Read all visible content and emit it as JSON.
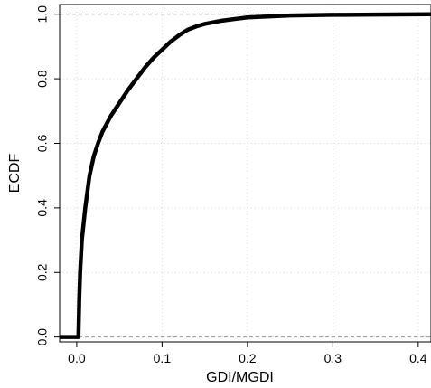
{
  "chart_data": {
    "type": "line",
    "title": "",
    "xlabel": "GDI/MGDI",
    "ylabel": "ECDF",
    "xlim": [
      -0.02,
      0.415
    ],
    "ylim": [
      -0.015,
      1.03
    ],
    "x_ticks": [
      0.0,
      0.1,
      0.2,
      0.3,
      0.4
    ],
    "y_ticks": [
      0.0,
      0.2,
      0.4,
      0.6,
      0.8,
      1.0
    ],
    "x_tick_labels": [
      "0.0",
      "0.1",
      "0.2",
      "0.3",
      "0.4"
    ],
    "y_tick_labels": [
      "0.0",
      "0.2",
      "0.4",
      "0.6",
      "0.8",
      "1.0"
    ],
    "grid": true,
    "reference_lines_y": [
      0.0,
      1.0
    ],
    "series": [
      {
        "color": "#000000",
        "x": [
          -0.02,
          0.0,
          0.002,
          0.003,
          0.004,
          0.006,
          0.01,
          0.015,
          0.02,
          0.025,
          0.03,
          0.04,
          0.05,
          0.06,
          0.07,
          0.08,
          0.09,
          0.1,
          0.11,
          0.12,
          0.13,
          0.14,
          0.15,
          0.17,
          0.2,
          0.25,
          0.3,
          0.35,
          0.415
        ],
        "y": [
          0.0,
          0.0,
          0.0,
          0.12,
          0.2,
          0.3,
          0.4,
          0.5,
          0.56,
          0.6,
          0.635,
          0.685,
          0.725,
          0.765,
          0.8,
          0.835,
          0.865,
          0.89,
          0.915,
          0.935,
          0.952,
          0.962,
          0.97,
          0.98,
          0.99,
          0.996,
          0.998,
          0.999,
          1.0
        ]
      }
    ]
  }
}
